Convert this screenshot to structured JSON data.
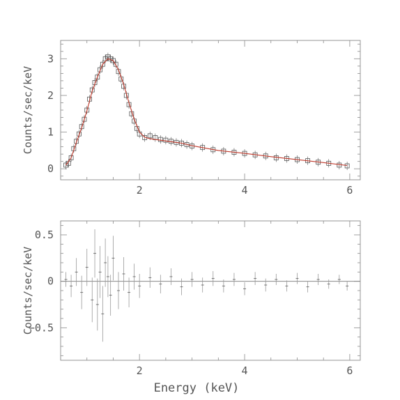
{
  "chart_data": [
    {
      "type": "scatter",
      "panel": "spectrum",
      "xlabel": "",
      "ylabel": "Counts/sec/keV",
      "xlim": [
        0.5,
        6.2
      ],
      "ylim": [
        -0.3,
        3.5
      ],
      "x_ticks": [
        2,
        4,
        6
      ],
      "y_ticks": [
        0,
        1,
        2,
        3
      ],
      "grid": false,
      "colors": {
        "data": "#555555",
        "model": "#c0392b"
      },
      "series": [
        {
          "kind": "data-points",
          "x": [
            0.6,
            0.65,
            0.7,
            0.75,
            0.8,
            0.85,
            0.9,
            0.95,
            1.0,
            1.05,
            1.1,
            1.15,
            1.2,
            1.25,
            1.3,
            1.35,
            1.4,
            1.45,
            1.5,
            1.55,
            1.6,
            1.65,
            1.7,
            1.75,
            1.8,
            1.85,
            1.9,
            1.95,
            2.0,
            2.1,
            2.2,
            2.3,
            2.4,
            2.5,
            2.6,
            2.7,
            2.8,
            2.9,
            3.0,
            3.2,
            3.4,
            3.6,
            3.8,
            4.0,
            4.2,
            4.4,
            4.6,
            4.8,
            5.0,
            5.2,
            5.4,
            5.6,
            5.8,
            5.95
          ],
          "y": [
            0.1,
            0.15,
            0.3,
            0.55,
            0.75,
            0.95,
            1.15,
            1.35,
            1.6,
            1.9,
            2.15,
            2.35,
            2.5,
            2.7,
            2.85,
            3.0,
            3.05,
            3.0,
            2.95,
            2.85,
            2.65,
            2.45,
            2.25,
            2.0,
            1.75,
            1.5,
            1.3,
            1.1,
            0.95,
            0.85,
            0.9,
            0.85,
            0.8,
            0.78,
            0.75,
            0.72,
            0.7,
            0.66,
            0.62,
            0.58,
            0.52,
            0.48,
            0.45,
            0.42,
            0.38,
            0.35,
            0.3,
            0.28,
            0.25,
            0.22,
            0.18,
            0.15,
            0.1,
            0.08
          ]
        },
        {
          "kind": "model",
          "x": [
            0.6,
            0.7,
            0.8,
            0.9,
            1.0,
            1.1,
            1.2,
            1.3,
            1.4,
            1.5,
            1.6,
            1.7,
            1.8,
            1.9,
            2.0,
            2.1,
            2.2,
            2.4,
            2.6,
            2.8,
            3.0,
            3.5,
            4.0,
            4.5,
            5.0,
            5.5,
            5.95
          ],
          "y": [
            0.1,
            0.3,
            0.72,
            1.12,
            1.58,
            2.12,
            2.5,
            2.85,
            3.0,
            2.95,
            2.7,
            2.3,
            1.8,
            1.35,
            1.0,
            0.86,
            0.82,
            0.78,
            0.74,
            0.7,
            0.63,
            0.5,
            0.42,
            0.33,
            0.25,
            0.17,
            0.09
          ]
        }
      ]
    },
    {
      "type": "scatter",
      "panel": "residuals",
      "xlabel": "Energy (keV)",
      "ylabel": "Counts/sec/keV",
      "xlim": [
        0.5,
        6.2
      ],
      "ylim": [
        -0.85,
        0.65
      ],
      "x_ticks": [
        2,
        4,
        6
      ],
      "y_ticks": [
        0.5,
        0,
        -0.5
      ],
      "y_tick_labels": [
        "0.5",
        "0",
        "−0.5"
      ],
      "grid": false,
      "zero_line": true,
      "colors": {
        "errorbars": "#999999",
        "points": "#555555"
      },
      "series": [
        {
          "kind": "residuals-with-errorbars",
          "x": [
            0.6,
            0.7,
            0.8,
            0.9,
            1.0,
            1.1,
            1.15,
            1.2,
            1.25,
            1.3,
            1.35,
            1.4,
            1.45,
            1.5,
            1.6,
            1.7,
            1.8,
            1.9,
            2.0,
            2.2,
            2.4,
            2.6,
            2.8,
            3.0,
            3.2,
            3.4,
            3.6,
            3.8,
            4.0,
            4.2,
            4.4,
            4.6,
            4.8,
            5.0,
            5.2,
            5.4,
            5.6,
            5.8,
            5.95
          ],
          "y": [
            0.02,
            -0.05,
            0.1,
            -0.12,
            0.15,
            -0.2,
            0.3,
            -0.25,
            0.1,
            -0.35,
            0.2,
            0.05,
            -0.15,
            0.25,
            -0.1,
            0.08,
            -0.12,
            0.05,
            -0.05,
            0.04,
            -0.03,
            0.05,
            -0.06,
            0.02,
            -0.04,
            0.03,
            -0.05,
            0.02,
            -0.08,
            0.03,
            -0.04,
            0.02,
            -0.05,
            0.03,
            -0.06,
            0.02,
            -0.03,
            0.02,
            -0.05
          ],
          "err": [
            0.08,
            0.12,
            0.15,
            0.18,
            0.2,
            0.24,
            0.26,
            0.28,
            0.28,
            0.3,
            0.26,
            0.22,
            0.22,
            0.24,
            0.2,
            0.18,
            0.16,
            0.14,
            0.13,
            0.11,
            0.1,
            0.09,
            0.09,
            0.08,
            0.08,
            0.08,
            0.07,
            0.07,
            0.07,
            0.07,
            0.07,
            0.06,
            0.06,
            0.06,
            0.06,
            0.06,
            0.05,
            0.05,
            0.05
          ]
        }
      ]
    }
  ]
}
